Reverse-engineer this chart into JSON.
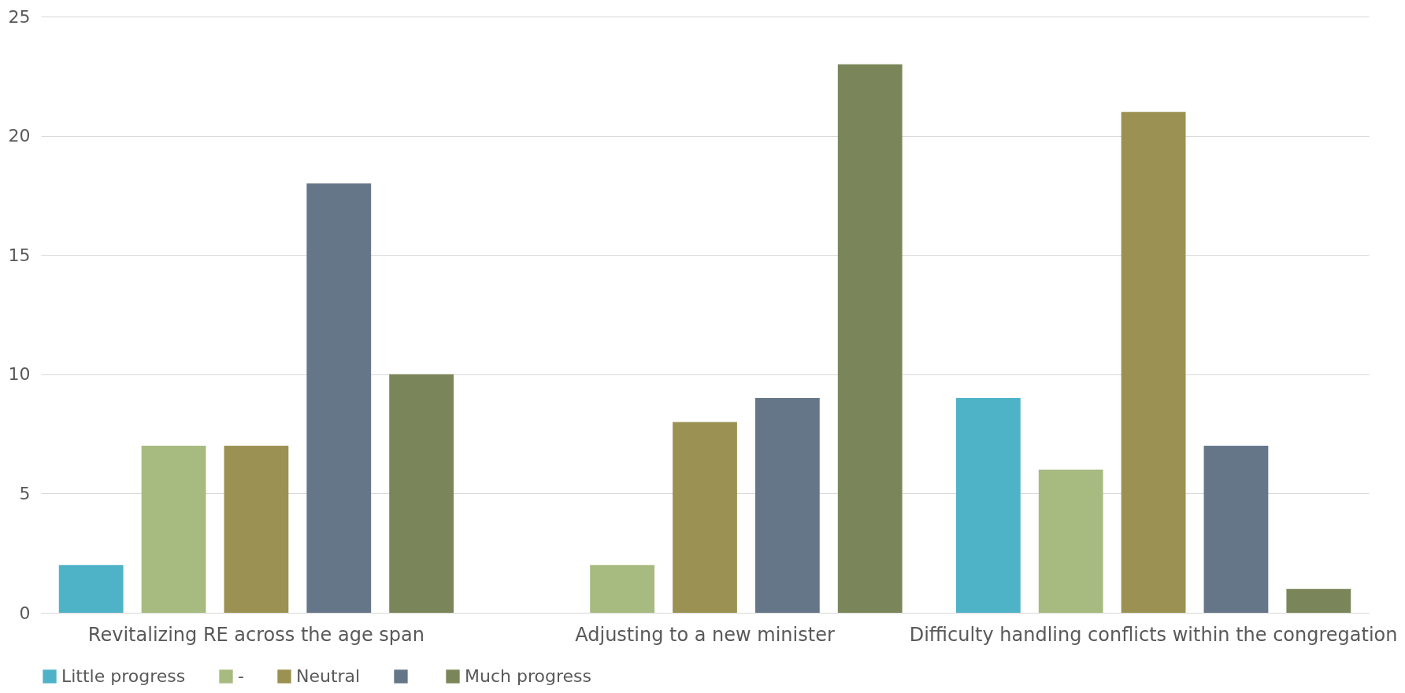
{
  "chart_data": {
    "type": "bar",
    "categories": [
      "Revitalizing RE across the age span",
      "Adjusting to a new minister",
      "Difficulty handling conflicts within the congregation"
    ],
    "series": [
      {
        "name": "Little progress",
        "color": "#4fb3c8",
        "values": [
          2,
          0,
          9
        ]
      },
      {
        "name": "-",
        "color": "#a7ba7f",
        "values": [
          7,
          2,
          6
        ]
      },
      {
        "name": "Neutral",
        "color": "#9b9152",
        "values": [
          7,
          8,
          21
        ]
      },
      {
        "color": "#657688",
        "values": [
          18,
          9,
          7
        ]
      },
      {
        "name": "Much progress",
        "color": "#7a8659",
        "values": [
          10,
          23,
          1
        ]
      }
    ],
    "ylim": [
      0,
      25
    ],
    "yticks": [
      0,
      5,
      10,
      15,
      20,
      25
    ],
    "grid": "y",
    "legend": "bottom"
  }
}
